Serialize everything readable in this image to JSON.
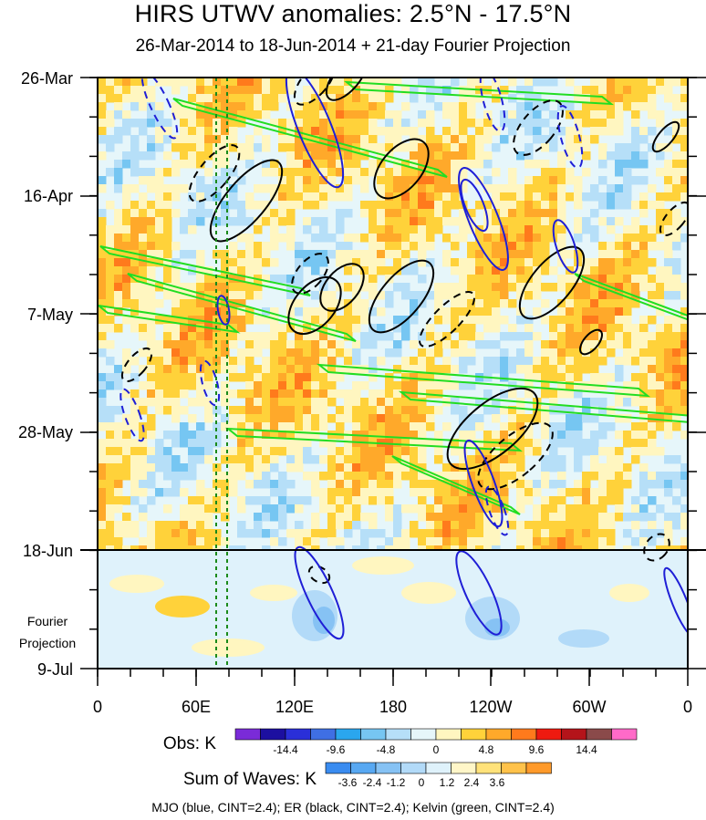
{
  "chart_data": {
    "type": "heatmap",
    "title": "HIRS UTWV anomalies: 2.5°N - 17.5°N",
    "subtitle": "26-Mar-2014 to 18-Jun-2014 + 21-day Fourier Projection",
    "y_ticks": [
      "26-Mar",
      "16-Apr",
      "7-May",
      "28-May",
      "18-Jun",
      "9-Jul"
    ],
    "x_ticks": [
      "0",
      "60E",
      "120E",
      "180",
      "120W",
      "60W",
      "0"
    ],
    "projection_label_1": "Fourier",
    "projection_label_2": "Projection",
    "obs_colorbar": {
      "title": "Obs: K",
      "labels": [
        "-14.4",
        "-9.6",
        "-4.8",
        "0",
        "4.8",
        "9.6",
        "14.4"
      ],
      "colors": [
        "#7a2bd8",
        "#1c0fa0",
        "#2a2fd8",
        "#3f6fe4",
        "#2aa6ee",
        "#76c6f2",
        "#b6dff8",
        "#e6f6fa",
        "#fff6c0",
        "#ffd23a",
        "#ffa92a",
        "#ff7a1c",
        "#ee1a10",
        "#b4141a",
        "#8a4a4a",
        "#ff6ac8"
      ]
    },
    "waves_colorbar": {
      "title": "Sum of Waves: K",
      "labels": [
        "-3.6",
        "-2.4",
        "-1.2",
        "0",
        "1.2",
        "2.4",
        "3.6"
      ],
      "colors": [
        "#3a8cf0",
        "#58a8f2",
        "#86c2f4",
        "#b2daf8",
        "#dff2fb",
        "#fff6c8",
        "#ffe27a",
        "#ffc24a",
        "#ff9a2a"
      ]
    },
    "footer": "MJO (blue, CINT=2.4); ER (black, CINT=2.4); Kelvin (green, CINT=2.4)",
    "heat_colors": [
      "#76c6f2",
      "#b6dff8",
      "#e6f6fa",
      "#fff6c0",
      "#ffd23a",
      "#ffa92a",
      "#ff7a1c"
    ],
    "mjo_color": "#1f1fd6",
    "er_color": "#000000",
    "kelvin_color": "#22dd22"
  }
}
